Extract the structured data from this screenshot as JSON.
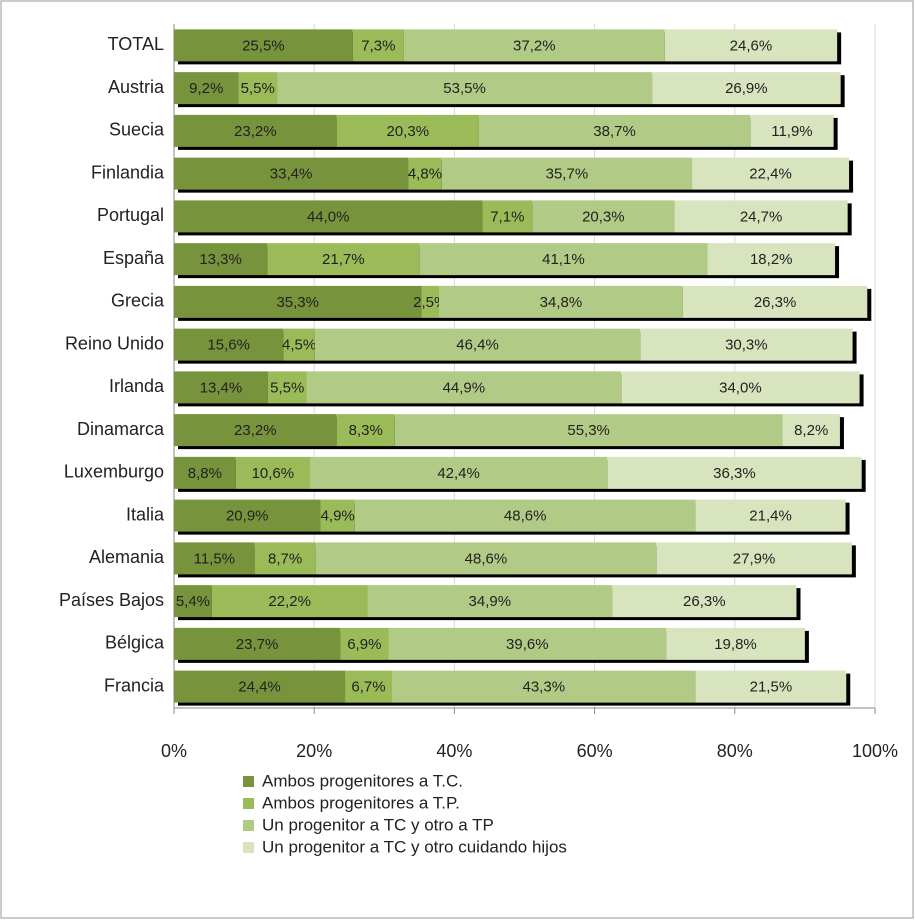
{
  "chart_data": {
    "type": "stacked_bar_horizontal",
    "categories": [
      "TOTAL",
      "Austria",
      "Suecia",
      "Finlandia",
      "Portugal",
      "España",
      "Grecia",
      "Reino Unido",
      "Irlanda",
      "Dinamarca",
      "Luxemburgo",
      "Italia",
      "Alemania",
      "Países Bajos",
      "Bélgica",
      "Francia"
    ],
    "series": [
      {
        "name": "Ambos progenitores a T.C.",
        "color": "#77933c",
        "values": [
          25.5,
          9.2,
          23.2,
          33.4,
          44.0,
          13.3,
          35.3,
          15.6,
          13.4,
          23.2,
          8.8,
          20.9,
          11.5,
          5.4,
          23.7,
          24.4
        ],
        "value_labels": [
          "25,5%",
          "9,2%",
          "23,2%",
          "33,4%",
          "44,0%",
          "13,3%",
          "35,3%",
          "15,6%",
          "13,4%",
          "23,2%",
          "8,8%",
          "20,9%",
          "11,5%",
          "5,4%",
          "23,7%",
          "24,4%"
        ]
      },
      {
        "name": "Ambos progenitores a T.P.",
        "color": "#9bbb59",
        "values": [
          7.3,
          5.5,
          20.3,
          4.8,
          7.1,
          21.7,
          2.5,
          4.5,
          5.5,
          8.3,
          10.6,
          4.9,
          8.7,
          22.2,
          6.9,
          6.7
        ],
        "value_labels": [
          "7,3%",
          "5,5%",
          "20,3%",
          "4,8%",
          "7,1%",
          "21,7%",
          "2,5%",
          "4,5%",
          "5,5%",
          "8,3%",
          "10,6%",
          "4,9%",
          "8,7%",
          "22,2%",
          "6,9%",
          "6,7%"
        ]
      },
      {
        "name": "Un progenitor a TC y otro a TP",
        "color": "#b1cb86",
        "values": [
          37.2,
          53.5,
          38.7,
          35.7,
          20.3,
          41.1,
          34.8,
          46.4,
          44.9,
          55.3,
          42.4,
          48.6,
          48.6,
          34.9,
          39.6,
          43.3
        ],
        "value_labels": [
          "37,2%",
          "53,5%",
          "38,7%",
          "35,7%",
          "20,3%",
          "41,1%",
          "34,8%",
          "46,4%",
          "44,9%",
          "55,3%",
          "42,4%",
          "48,6%",
          "48,6%",
          "34,9%",
          "39,6%",
          "43,3%"
        ]
      },
      {
        "name": "Un progenitor a TC y otro cuidando hijos",
        "color": "#d7e4bd",
        "values": [
          24.6,
          26.9,
          11.9,
          22.4,
          24.7,
          18.2,
          26.3,
          30.3,
          34.0,
          8.2,
          36.3,
          21.4,
          27.9,
          26.3,
          19.8,
          21.5
        ],
        "value_labels": [
          "24,6%",
          "26,9%",
          "11,9%",
          "22,4%",
          "24,7%",
          "18,2%",
          "26,3%",
          "30,3%",
          "34,0%",
          "8,2%",
          "36,3%",
          "21,4%",
          "27,9%",
          "26,3%",
          "19,8%",
          "21,5%"
        ]
      }
    ],
    "xlim": [
      0,
      100
    ],
    "xticks": [
      {
        "value": 0,
        "label": "0%"
      },
      {
        "value": 20,
        "label": "20%"
      },
      {
        "value": 40,
        "label": "40%"
      },
      {
        "value": 60,
        "label": "60%"
      },
      {
        "value": 80,
        "label": "80%"
      },
      {
        "value": 100,
        "label": "100%"
      }
    ],
    "grid": true
  }
}
